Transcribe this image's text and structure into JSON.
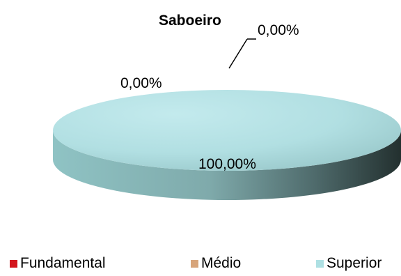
{
  "chart_data": {
    "type": "pie",
    "title": "Saboeiro",
    "categories": [
      "Fundamental",
      "Médio",
      "Superior"
    ],
    "values": [
      0,
      0,
      100
    ],
    "data_labels": [
      "0,00%",
      "0,00%",
      "100,00%"
    ],
    "colors": [
      "#d3161d",
      "#d7a47a",
      "#aee0e3"
    ],
    "legend_position": "bottom",
    "three_d": true
  }
}
